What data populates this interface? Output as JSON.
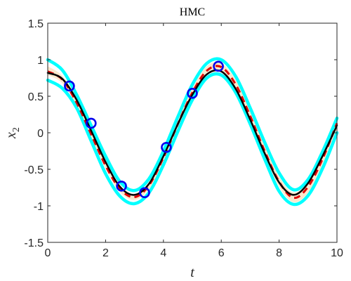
{
  "chart_data": {
    "type": "line",
    "title": "HMC",
    "xlabel": "t",
    "ylabel": {
      "base": "x",
      "subscript": "2"
    },
    "xlim": [
      0,
      10
    ],
    "ylim": [
      -1.5,
      1.5
    ],
    "x_ticks": [
      0,
      2,
      4,
      6,
      8,
      10
    ],
    "x_tick_labels": [
      "0",
      "2",
      "4",
      "6",
      "8",
      "10"
    ],
    "y_ticks": [
      -1.5,
      -1,
      -0.5,
      0,
      0.5,
      1,
      1.5
    ],
    "y_tick_labels": [
      "-1.5",
      "-1",
      "-0.5",
      "0",
      "0.5",
      "1",
      "1.5"
    ],
    "grid": false,
    "legend": "none",
    "x": [
      0,
      0.5,
      1,
      1.5,
      2,
      2.5,
      3,
      3.5,
      4,
      4.5,
      5,
      5.5,
      6,
      6.5,
      7,
      7.5,
      8,
      8.5,
      9,
      9.5,
      10
    ],
    "series": [
      {
        "style": "solid-black",
        "color": "#000000",
        "values": [
          0.82,
          0.74,
          0.45,
          0.03,
          -0.4,
          -0.74,
          -0.85,
          -0.7,
          -0.32,
          0.12,
          0.52,
          0.8,
          0.84,
          0.6,
          0.18,
          -0.28,
          -0.68,
          -0.85,
          -0.69,
          -0.32,
          0.1
        ]
      },
      {
        "style": "dashed-red",
        "color": "#e00000",
        "values": [
          0.84,
          0.73,
          0.41,
          -0.02,
          -0.45,
          -0.77,
          -0.88,
          -0.72,
          -0.34,
          0.12,
          0.55,
          0.85,
          0.9,
          0.66,
          0.23,
          -0.25,
          -0.67,
          -0.89,
          -0.74,
          -0.36,
          0.13
        ]
      },
      {
        "style": "cyan-upper-bound",
        "color": "#00ffff",
        "values": [
          1.0,
          0.86,
          0.52,
          0.1,
          -0.32,
          -0.67,
          -0.79,
          -0.63,
          -0.25,
          0.22,
          0.66,
          0.95,
          1.0,
          0.77,
          0.34,
          -0.13,
          -0.55,
          -0.78,
          -0.64,
          -0.26,
          0.2
        ]
      },
      {
        "style": "cyan-lower-bound",
        "color": "#00ffff",
        "values": [
          0.72,
          0.61,
          0.34,
          -0.11,
          -0.56,
          -0.87,
          -0.97,
          -0.82,
          -0.44,
          0.02,
          0.45,
          0.75,
          0.79,
          0.55,
          0.12,
          -0.36,
          -0.8,
          -0.98,
          -0.86,
          -0.49,
          0.0
        ]
      }
    ],
    "band": {
      "color": "#fbe8cc",
      "upper": [
        0.91,
        0.78,
        0.47,
        0.03,
        -0.41,
        -0.73,
        -0.84,
        -0.67,
        -0.29,
        0.17,
        0.61,
        0.91,
        0.95,
        0.72,
        0.3,
        -0.18,
        -0.6,
        -0.82,
        -0.66,
        -0.27,
        0.25
      ],
      "lower": [
        0.79,
        0.68,
        0.37,
        -0.06,
        -0.49,
        -0.81,
        -0.92,
        -0.77,
        -0.4,
        0.07,
        0.49,
        0.79,
        0.85,
        0.6,
        0.16,
        -0.32,
        -0.74,
        -0.95,
        -0.82,
        -0.45,
        0.01
      ]
    },
    "markers": {
      "color": "#0000ee",
      "x": [
        0.75,
        1.5,
        2.55,
        3.35,
        4.1,
        5.0,
        5.9
      ],
      "y": [
        0.64,
        0.13,
        -0.73,
        -0.82,
        -0.2,
        0.54,
        0.91
      ]
    }
  }
}
